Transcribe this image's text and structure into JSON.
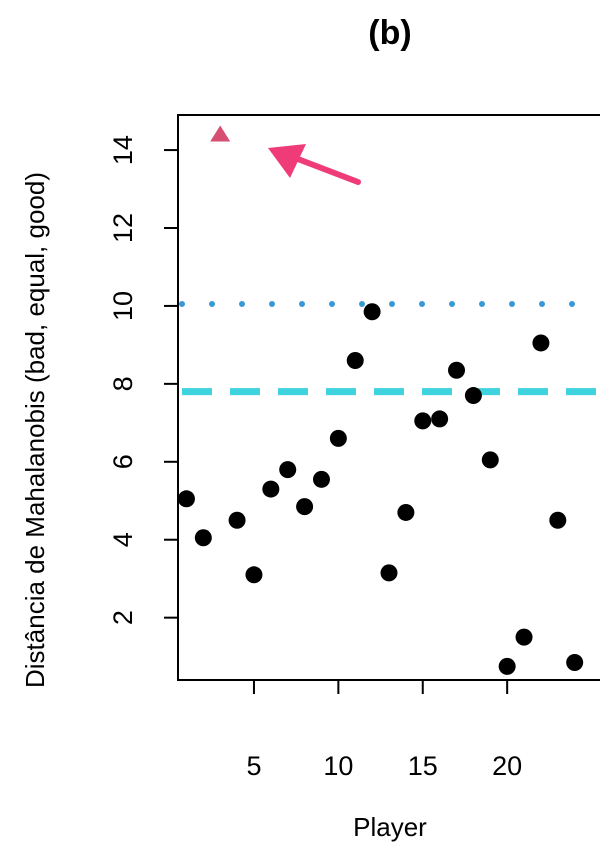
{
  "chart_data": {
    "type": "scatter",
    "title": "(b)",
    "xlabel": "Player",
    "ylabel": "Distância de Mahalanobis (bad, equal, good)",
    "x_ticks": [
      5,
      10,
      15,
      20
    ],
    "y_ticks": [
      2,
      4,
      6,
      8,
      10,
      12,
      14
    ],
    "xlim": [
      0.5,
      25.5
    ],
    "ylim": [
      0.4,
      14.9
    ],
    "grid": false,
    "points": [
      {
        "x": 1,
        "y": 5.05
      },
      {
        "x": 2,
        "y": 4.05
      },
      {
        "x": 4,
        "y": 4.5
      },
      {
        "x": 5,
        "y": 3.1
      },
      {
        "x": 6,
        "y": 5.3
      },
      {
        "x": 7,
        "y": 5.8
      },
      {
        "x": 8,
        "y": 4.85
      },
      {
        "x": 9,
        "y": 5.55
      },
      {
        "x": 10,
        "y": 6.6
      },
      {
        "x": 11,
        "y": 8.6
      },
      {
        "x": 12,
        "y": 9.85
      },
      {
        "x": 13,
        "y": 3.15
      },
      {
        "x": 14,
        "y": 4.7
      },
      {
        "x": 15,
        "y": 7.05
      },
      {
        "x": 16,
        "y": 7.1
      },
      {
        "x": 17,
        "y": 8.35
      },
      {
        "x": 18,
        "y": 7.7
      },
      {
        "x": 19,
        "y": 6.05
      },
      {
        "x": 20,
        "y": 0.75
      },
      {
        "x": 21,
        "y": 1.5
      },
      {
        "x": 22,
        "y": 9.05
      },
      {
        "x": 23,
        "y": 4.5
      },
      {
        "x": 24,
        "y": 0.85
      }
    ],
    "outlier": {
      "x": 3,
      "y": 14.4,
      "marker": "triangle",
      "color": "#d64f72"
    },
    "reference_lines": [
      {
        "y": 10.05,
        "style": "dotted",
        "color": "#3a98d6"
      },
      {
        "y": 7.8,
        "style": "dashed",
        "color": "#3fd3df"
      }
    ],
    "arrow": {
      "color": "#ef3c79",
      "points_to": "outlier"
    },
    "point_color": "#000000"
  }
}
